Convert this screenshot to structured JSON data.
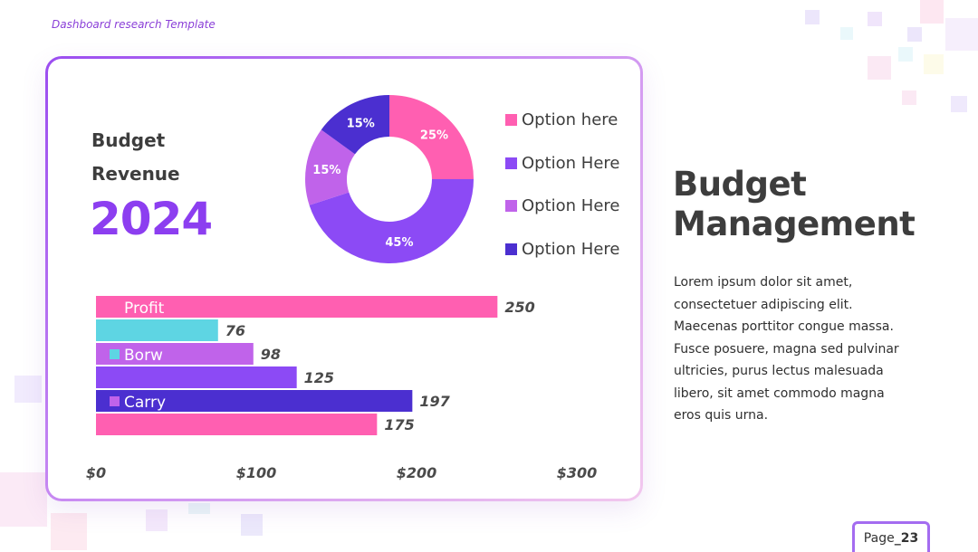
{
  "header": {
    "template_label": "Dashboard research Template"
  },
  "card": {
    "budget_line1": "Budget",
    "budget_line2": "Revenue",
    "year": "2024"
  },
  "legend": [
    {
      "label": "Option here",
      "color": "#ff5fb1"
    },
    {
      "label": "Option Here",
      "color": "#8c4af5"
    },
    {
      "label": "Option Here",
      "color": "#c063ea"
    },
    {
      "label": "Option Here",
      "color": "#4b2fd0"
    }
  ],
  "chart_data": [
    {
      "type": "pie",
      "donut": true,
      "slices": [
        {
          "label": "25%",
          "value": 25,
          "color": "#ff5fb1"
        },
        {
          "label": "45%",
          "value": 45,
          "color": "#8c4af5"
        },
        {
          "label": "15%",
          "value": 15,
          "color": "#c063ea"
        },
        {
          "label": "15%",
          "value": 15,
          "color": "#4b2fd0"
        }
      ]
    },
    {
      "type": "bar",
      "orientation": "horizontal",
      "values": [
        250,
        76,
        98,
        125,
        197,
        175
      ],
      "colors": [
        "#ff5fb1",
        "#5ed5e3",
        "#c063ea",
        "#8c4af5",
        "#4b2fd0",
        "#ff5fb1"
      ],
      "xlim": [
        0,
        300
      ],
      "x_ticks": [
        "$0",
        "$100",
        "$200",
        "$300"
      ],
      "inline_labels": [
        {
          "bar_index": 0,
          "text": "Profit",
          "marker_color": null
        },
        {
          "bar_index": 2,
          "text": "Borw",
          "marker_color": "#5ed5e3"
        },
        {
          "bar_index": 4,
          "text": "Carry",
          "marker_color": "#c063ea"
        }
      ]
    }
  ],
  "main": {
    "title_line1": "Budget",
    "title_line2": "Management",
    "body": "Lorem ipsum dolor sit amet, consectetuer adipiscing elit. Maecenas porttitor congue massa. Fusce posuere, magna sed pulvinar ultricies, purus lectus malesuada libero, sit amet commodo magna eros quis urna."
  },
  "footer": {
    "page_prefix": "Page",
    "page_number": "_23"
  }
}
